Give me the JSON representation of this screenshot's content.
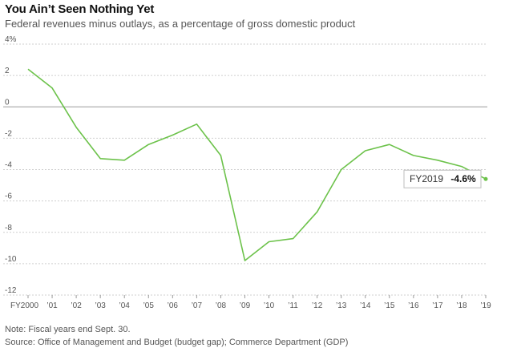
{
  "chart_data": {
    "type": "line",
    "title": "You Ain’t Seen Nothing Yet",
    "subtitle": "Federal revenues minus outlays, as a percentage of gross domestic product",
    "x": [
      "FY2000",
      "’01",
      "’02",
      "’03",
      "’04",
      "’05",
      "’06",
      "’07",
      "’08",
      "’09",
      "’10",
      "’11",
      "’12",
      "’13",
      "’14",
      "’15",
      "’16",
      "’17",
      "’18",
      "’19"
    ],
    "series": [
      {
        "values": [
          2.4,
          1.2,
          -1.3,
          -3.3,
          -3.4,
          -2.4,
          -1.8,
          -1.1,
          -3.1,
          -9.8,
          -8.6,
          -8.4,
          -6.7,
          -4.0,
          -2.8,
          -2.4,
          -3.1,
          -3.4,
          -3.8,
          -4.6
        ]
      }
    ],
    "ylim": [
      -12,
      4
    ],
    "yticks": [
      4,
      2,
      0,
      -2,
      -4,
      -6,
      -8,
      -10,
      -12
    ],
    "ytick_labels": [
      "4%",
      "2",
      "0",
      "-2",
      "-4",
      "-6",
      "-8",
      "-10",
      "-12"
    ],
    "grid": true,
    "line_color": "#6cc24a",
    "annotation": {
      "label": "FY2019",
      "value": "-4.6%"
    },
    "notes": [
      "Note: Fiscal years end Sept. 30.",
      "Source: Office of Management and Budget (budget gap); Commerce Department (GDP)"
    ]
  }
}
